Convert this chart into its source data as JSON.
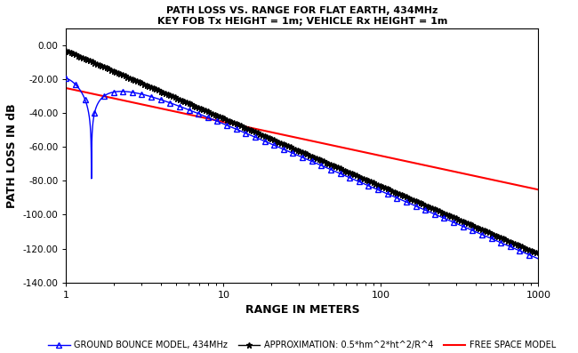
{
  "title_line1": "PATH LOSS VS. RANGE FOR FLAT EARTH, 434MHz",
  "title_line2": "KEY FOB Tx HEIGHT = 1m; VEHICLE Rx HEIGHT = 1m",
  "xlabel": "RANGE IN METERS",
  "ylabel": "PATH LOSS IN dB",
  "xlim": [
    1,
    1000
  ],
  "ylim": [
    -140,
    10
  ],
  "yticks": [
    0,
    -20,
    -40,
    -60,
    -80,
    -100,
    -120,
    -140
  ],
  "ytick_labels": [
    "0.00",
    "-20.00",
    "-40.00",
    "-60.00",
    "-80.00",
    "-100.00",
    "-120.00",
    "-140.00"
  ],
  "freq_MHz": 434,
  "ht": 1,
  "hr": 1,
  "legend_labels": [
    "GROUND BOUNCE MODEL, 434MHz",
    "APPROXIMATION: 0.5*hm^2*ht^2/R^4",
    "FREE SPACE MODEL"
  ],
  "line_colors": [
    "blue",
    "black",
    "red"
  ],
  "background_color": "#ffffff"
}
